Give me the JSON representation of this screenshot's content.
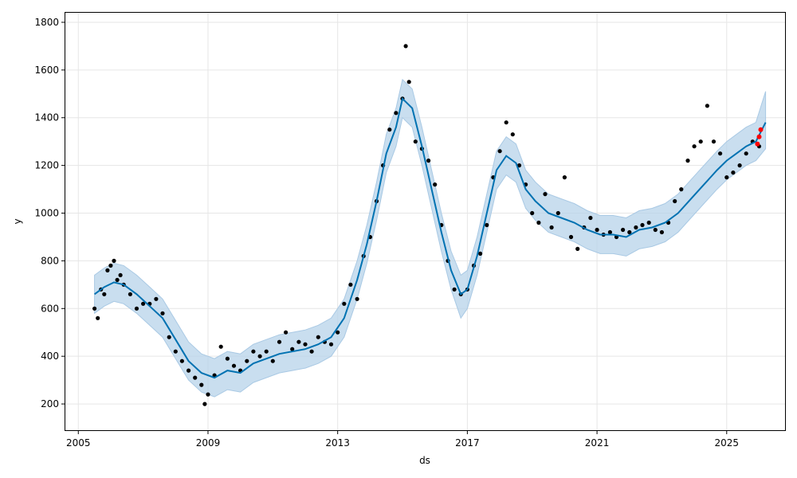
{
  "chart_data": {
    "type": "line",
    "xlabel": "ds",
    "ylabel": "y",
    "xlim": [
      2004.6,
      2026.8
    ],
    "ylim": [
      90,
      1840
    ],
    "grid": true,
    "x_ticks": [
      2005,
      2009,
      2013,
      2017,
      2021,
      2025
    ],
    "x_tick_labels": [
      "2005",
      "2009",
      "2013",
      "2017",
      "2021",
      "2025"
    ],
    "y_ticks": [
      200,
      400,
      600,
      800,
      1000,
      1200,
      1400,
      1600,
      1800
    ],
    "y_tick_labels": [
      "200",
      "400",
      "600",
      "800",
      "1000",
      "1200",
      "1400",
      "1600",
      "1800"
    ],
    "colors": {
      "observed": "#000000",
      "forecast_line": "#0072B2",
      "uncertainty_band": "#b7d3ea",
      "recent_points": "#ff0000"
    },
    "forecast": {
      "x": [
        2005.5,
        2005.8,
        2006.1,
        2006.4,
        2006.8,
        2007.2,
        2007.6,
        2008.0,
        2008.4,
        2008.8,
        2009.2,
        2009.6,
        2010.0,
        2010.4,
        2010.8,
        2011.2,
        2011.6,
        2012.0,
        2012.4,
        2012.8,
        2013.2,
        2013.6,
        2013.9,
        2014.2,
        2014.5,
        2014.8,
        2015.0,
        2015.3,
        2015.6,
        2015.9,
        2016.2,
        2016.5,
        2016.8,
        2017.0,
        2017.3,
        2017.6,
        2017.9,
        2018.2,
        2018.5,
        2018.8,
        2019.1,
        2019.5,
        2019.9,
        2020.3,
        2020.7,
        2021.1,
        2021.5,
        2021.9,
        2022.3,
        2022.7,
        2023.1,
        2023.5,
        2023.9,
        2024.3,
        2024.7,
        2025.0,
        2025.3,
        2025.6,
        2025.9,
        2026.2
      ],
      "y": [
        660,
        690,
        710,
        700,
        660,
        610,
        560,
        470,
        380,
        330,
        310,
        340,
        330,
        370,
        390,
        410,
        420,
        430,
        450,
        480,
        560,
        720,
        870,
        1050,
        1250,
        1360,
        1480,
        1440,
        1280,
        1100,
        920,
        760,
        660,
        680,
        820,
        1000,
        1180,
        1240,
        1210,
        1100,
        1050,
        1000,
        980,
        960,
        930,
        910,
        910,
        900,
        930,
        940,
        960,
        1000,
        1060,
        1120,
        1180,
        1220,
        1250,
        1280,
        1300,
        1380
      ],
      "lower": [
        580,
        610,
        630,
        620,
        580,
        530,
        480,
        390,
        300,
        250,
        230,
        260,
        250,
        290,
        310,
        330,
        340,
        350,
        370,
        400,
        480,
        640,
        790,
        970,
        1170,
        1280,
        1400,
        1360,
        1200,
        1020,
        840,
        680,
        560,
        600,
        740,
        920,
        1100,
        1160,
        1130,
        1020,
        970,
        920,
        900,
        880,
        850,
        830,
        830,
        820,
        850,
        860,
        880,
        920,
        980,
        1040,
        1100,
        1140,
        1170,
        1200,
        1220,
        1270
      ],
      "upper": [
        740,
        770,
        790,
        780,
        740,
        690,
        640,
        550,
        460,
        410,
        390,
        420,
        410,
        450,
        470,
        490,
        500,
        510,
        530,
        560,
        640,
        800,
        950,
        1130,
        1330,
        1440,
        1560,
        1520,
        1360,
        1180,
        1000,
        840,
        740,
        760,
        900,
        1080,
        1260,
        1320,
        1290,
        1180,
        1130,
        1080,
        1060,
        1040,
        1010,
        990,
        990,
        980,
        1010,
        1020,
        1040,
        1080,
        1140,
        1200,
        1260,
        1300,
        1330,
        1360,
        1380,
        1510
      ]
    },
    "observed": {
      "x": [
        2005.5,
        2005.6,
        2005.7,
        2005.8,
        2005.9,
        2006.0,
        2006.1,
        2006.2,
        2006.3,
        2006.4,
        2006.6,
        2006.8,
        2007.0,
        2007.2,
        2007.4,
        2007.6,
        2007.8,
        2008.0,
        2008.2,
        2008.4,
        2008.6,
        2008.8,
        2008.9,
        2009.0,
        2009.2,
        2009.4,
        2009.6,
        2009.8,
        2010.0,
        2010.2,
        2010.4,
        2010.6,
        2010.8,
        2011.0,
        2011.2,
        2011.4,
        2011.6,
        2011.8,
        2012.0,
        2012.2,
        2012.4,
        2012.6,
        2012.8,
        2013.0,
        2013.2,
        2013.4,
        2013.6,
        2013.8,
        2014.0,
        2014.2,
        2014.4,
        2014.6,
        2014.8,
        2015.0,
        2015.1,
        2015.2,
        2015.4,
        2015.6,
        2015.8,
        2016.0,
        2016.2,
        2016.4,
        2016.6,
        2016.8,
        2017.0,
        2017.2,
        2017.4,
        2017.6,
        2017.8,
        2018.0,
        2018.2,
        2018.4,
        2018.6,
        2018.8,
        2019.0,
        2019.2,
        2019.4,
        2019.6,
        2019.8,
        2020.0,
        2020.2,
        2020.4,
        2020.6,
        2020.8,
        2021.0,
        2021.2,
        2021.4,
        2021.6,
        2021.8,
        2022.0,
        2022.2,
        2022.4,
        2022.6,
        2022.8,
        2023.0,
        2023.2,
        2023.4,
        2023.6,
        2023.8,
        2024.0,
        2024.2,
        2024.4,
        2024.6,
        2024.8,
        2025.0,
        2025.2,
        2025.4,
        2025.6,
        2025.8,
        2026.0
      ],
      "y": [
        600,
        560,
        680,
        660,
        760,
        780,
        800,
        720,
        740,
        700,
        660,
        600,
        620,
        620,
        640,
        580,
        480,
        420,
        380,
        340,
        310,
        280,
        200,
        240,
        320,
        440,
        390,
        360,
        340,
        380,
        420,
        400,
        420,
        380,
        460,
        500,
        430,
        460,
        450,
        420,
        480,
        460,
        450,
        500,
        620,
        700,
        640,
        820,
        900,
        1050,
        1200,
        1350,
        1420,
        1480,
        1700,
        1550,
        1300,
        1270,
        1220,
        1120,
        950,
        800,
        680,
        660,
        680,
        780,
        830,
        950,
        1150,
        1260,
        1380,
        1330,
        1200,
        1120,
        1000,
        960,
        1080,
        940,
        1000,
        1150,
        900,
        850,
        940,
        980,
        930,
        910,
        920,
        900,
        930,
        920,
        940,
        950,
        960,
        930,
        920,
        960,
        1050,
        1100,
        1220,
        1280,
        1300,
        1450,
        1300,
        1250,
        1150,
        1170,
        1200,
        1250,
        1300,
        1280
      ],
      "recent_x": [
        2025.95,
        2026.0,
        2026.05
      ],
      "recent_y": [
        1290,
        1320,
        1350
      ]
    }
  }
}
